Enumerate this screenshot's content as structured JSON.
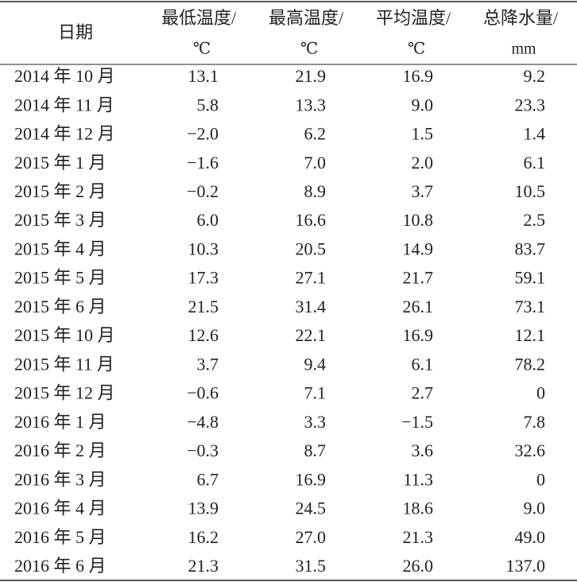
{
  "header": {
    "date": "日期",
    "columns": [
      {
        "name": "最低温度/",
        "unit": "℃"
      },
      {
        "name": "最高温度/",
        "unit": "℃"
      },
      {
        "name": "平均温度/",
        "unit": "℃"
      },
      {
        "name": "总降水量/",
        "unit": "mm"
      }
    ]
  },
  "rows": [
    [
      "2014 年 10 月",
      "13.1",
      "21.9",
      "16.9",
      "9.2"
    ],
    [
      "2014 年 11 月",
      "5.8",
      "13.3",
      "9.0",
      "23.3"
    ],
    [
      "2014 年 12 月",
      "−2.0",
      "6.2",
      "1.5",
      "1.4"
    ],
    [
      "2015 年 1 月",
      "−1.6",
      "7.0",
      "2.0",
      "6.1"
    ],
    [
      "2015 年 2 月",
      "−0.2",
      "8.9",
      "3.7",
      "10.5"
    ],
    [
      "2015 年 3 月",
      "6.0",
      "16.6",
      "10.8",
      "2.5"
    ],
    [
      "2015 年 4 月",
      "10.3",
      "20.5",
      "14.9",
      "83.7"
    ],
    [
      "2015 年 5 月",
      "17.3",
      "27.1",
      "21.7",
      "59.1"
    ],
    [
      "2015 年 6 月",
      "21.5",
      "31.4",
      "26.1",
      "73.1"
    ],
    [
      "2015 年 10 月",
      "12.6",
      "22.1",
      "16.9",
      "12.1"
    ],
    [
      "2015 年 11 月",
      "3.7",
      "9.4",
      "6.1",
      "78.2"
    ],
    [
      "2015 年 12 月",
      "−0.6",
      "7.1",
      "2.7",
      "0"
    ],
    [
      "2016 年 1 月",
      "−4.8",
      "3.3",
      "−1.5",
      "7.8"
    ],
    [
      "2016 年 2 月",
      "−0.3",
      "8.7",
      "3.6",
      "32.6"
    ],
    [
      "2016 年 3 月",
      "6.7",
      "16.9",
      "11.3",
      "0"
    ],
    [
      "2016 年 4 月",
      "13.9",
      "24.5",
      "18.6",
      "9.0"
    ],
    [
      "2016 年 5 月",
      "16.2",
      "27.0",
      "21.3",
      "49.0"
    ],
    [
      "2016 年 6 月",
      "21.3",
      "31.5",
      "26.0",
      "137.0"
    ]
  ]
}
